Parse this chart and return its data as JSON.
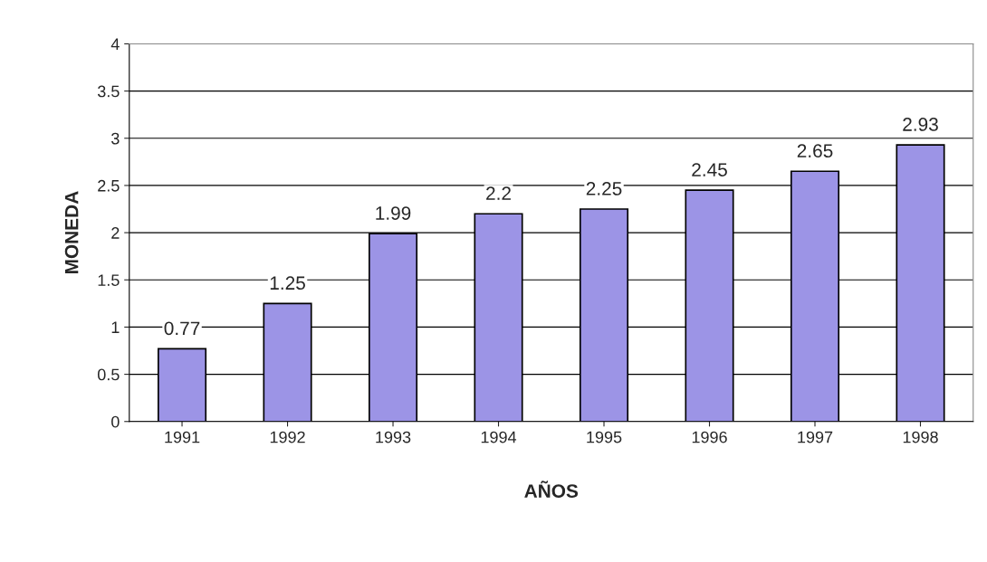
{
  "chart_data": {
    "type": "bar",
    "xlabel": "AÑOS",
    "ylabel": "MONEDA",
    "categories": [
      "1991",
      "1992",
      "1993",
      "1994",
      "1995",
      "1996",
      "1997",
      "1998"
    ],
    "values": [
      0.77,
      1.25,
      1.99,
      2.2,
      2.25,
      2.45,
      2.65,
      2.93
    ],
    "color": "#9c94e6",
    "data_labels": true,
    "grid": "y",
    "ylim": [
      0,
      4
    ],
    "yticks": [
      0,
      {
        "value": 0.5,
        "label": "0.5"
      },
      1,
      {
        "value": 1.5,
        "label": "1.5"
      },
      2,
      {
        "value": 2.5,
        "label": "2.5"
      },
      3,
      {
        "value": 3.5,
        "label": "3.5"
      },
      4
    ]
  }
}
